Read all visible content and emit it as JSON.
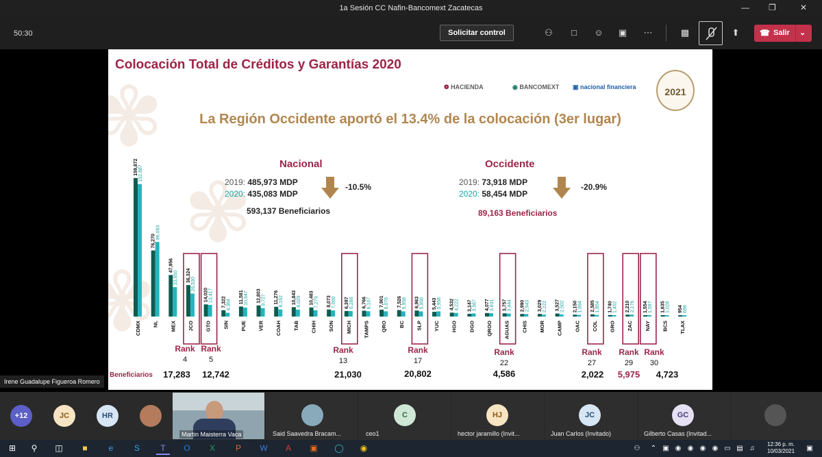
{
  "window": {
    "title": "1a Sesión CC Nafin-Bancomext Zacatecas"
  },
  "toolbar": {
    "timer": "50:30",
    "request_control": "Solicitar control",
    "leave": "Salir"
  },
  "slide": {
    "title": "Colocación Total de Créditos y Garantías 2020",
    "logos": [
      "HACIENDA",
      "BANCOMEXT",
      "nacional financiera"
    ],
    "seal_text": "2021",
    "headline": "La Región Occidente aportó el 13.4% de la colocación (3er lugar)",
    "nacional": {
      "heading": "Nacional",
      "y2019_label": "2019:",
      "y2019_value": "485,973 MDP",
      "y2020_label": "2020:",
      "y2020_value": "435,083 MDP",
      "change": "-10.5%",
      "beneficiaries": "593,137 Beneficiarios"
    },
    "occidente": {
      "heading": "Occidente",
      "y2019_label": "2019:",
      "y2019_value": "73,918 MDP",
      "y2020_label": "2020:",
      "y2020_value": "58,454 MDP",
      "change": "-20.9%",
      "beneficiaries": "89,163 Beneficiarios"
    },
    "beneficiarios_label": "Beneficiarios",
    "ranks": [
      {
        "state": "JCO",
        "rank_label": "Rank",
        "rank": "4",
        "benef": "17,283"
      },
      {
        "state": "GTO",
        "rank_label": "Rank",
        "rank": "5",
        "benef": "12,742"
      },
      {
        "state": "MICH",
        "rank_label": "Rank",
        "rank": "13",
        "benef": "21,030"
      },
      {
        "state": "SLP",
        "rank_label": "Rank",
        "rank": "17",
        "benef": "20,802"
      },
      {
        "state": "AGUAS",
        "rank_label": "Rank",
        "rank": "22",
        "benef": "4,586"
      },
      {
        "state": "COL",
        "rank_label": "Rank",
        "rank": "27",
        "benef": "2,022"
      },
      {
        "state": "ZAC",
        "rank_label": "Rank",
        "rank": "29",
        "benef": "5,975"
      },
      {
        "state": "NAY",
        "rank_label": "Rank",
        "rank": "30",
        "benef": "4,723"
      }
    ],
    "colors": {
      "dark": "#0f5c4f",
      "light": "#27b3c0",
      "accent": "#9c2447",
      "gold": "#b1864e"
    }
  },
  "chart_data": {
    "type": "bar",
    "categories": [
      "CDMX",
      "NL",
      "MEX",
      "JCO",
      "GTO",
      "SIN",
      "PUE",
      "VER",
      "COAH",
      "TAB",
      "CHIH",
      "SON",
      "MICH",
      "TAMPS",
      "QRO",
      "BC",
      "SLP",
      "YUC",
      "HGO",
      "DGO",
      "QROO",
      "AGUAS",
      "CHIS",
      "MOR",
      "CAMP",
      "OAC",
      "COL",
      "GRO",
      "ZAC",
      "NAY",
      "BCS",
      "TLAX"
    ],
    "series": [
      {
        "values": [
          159872,
          76270,
          47956,
          36324,
          14020,
          7322,
          11581,
          12803,
          11276,
          10843,
          10483,
          8073,
          6397,
          6766,
          7901,
          7526,
          6963,
          5443,
          4532,
          3147,
          4077,
          3757,
          2990,
          3029,
          3527,
          2150,
          2585,
          1740,
          2210,
          1554,
          1635,
          954
        ]
      },
      {
        "values": [
          152887,
          86093,
          33950,
          26530,
          13417,
          4364,
          10347,
          9727,
          8192,
          8029,
          7279,
          7000,
          6286,
          6107,
          6076,
          5958,
          5958,
          5958,
          4222,
          3567,
          3831,
          3444,
          2943,
          2222,
          2502,
          1894,
          1854,
          1452,
          2176,
          1597,
          1026,
          698
        ]
      }
    ],
    "ylim": [
      0,
      170000
    ]
  },
  "meeting": {
    "caller_callout": "Irene Guadalupe Figueroa Romero",
    "participants": [
      {
        "initials": "+12"
      },
      {
        "initials": "JC"
      },
      {
        "initials": "HR"
      },
      {
        "initials": ""
      },
      {
        "name": "Martin Maisterra Vaca"
      },
      {
        "initials": "",
        "name": "Said Saavedra Bracam..."
      },
      {
        "initials": "C",
        "name": "ceo1"
      },
      {
        "initials": "HJ",
        "name": "hector jaramillo (Invit..."
      },
      {
        "initials": "JC",
        "name": "Juan Carlos (Invitado)"
      },
      {
        "initials": "GC",
        "name": "Gilberto Casas (Invitad..."
      }
    ]
  },
  "taskbar": {
    "time": "12:36 p. m.",
    "date": "10/03/2021"
  }
}
